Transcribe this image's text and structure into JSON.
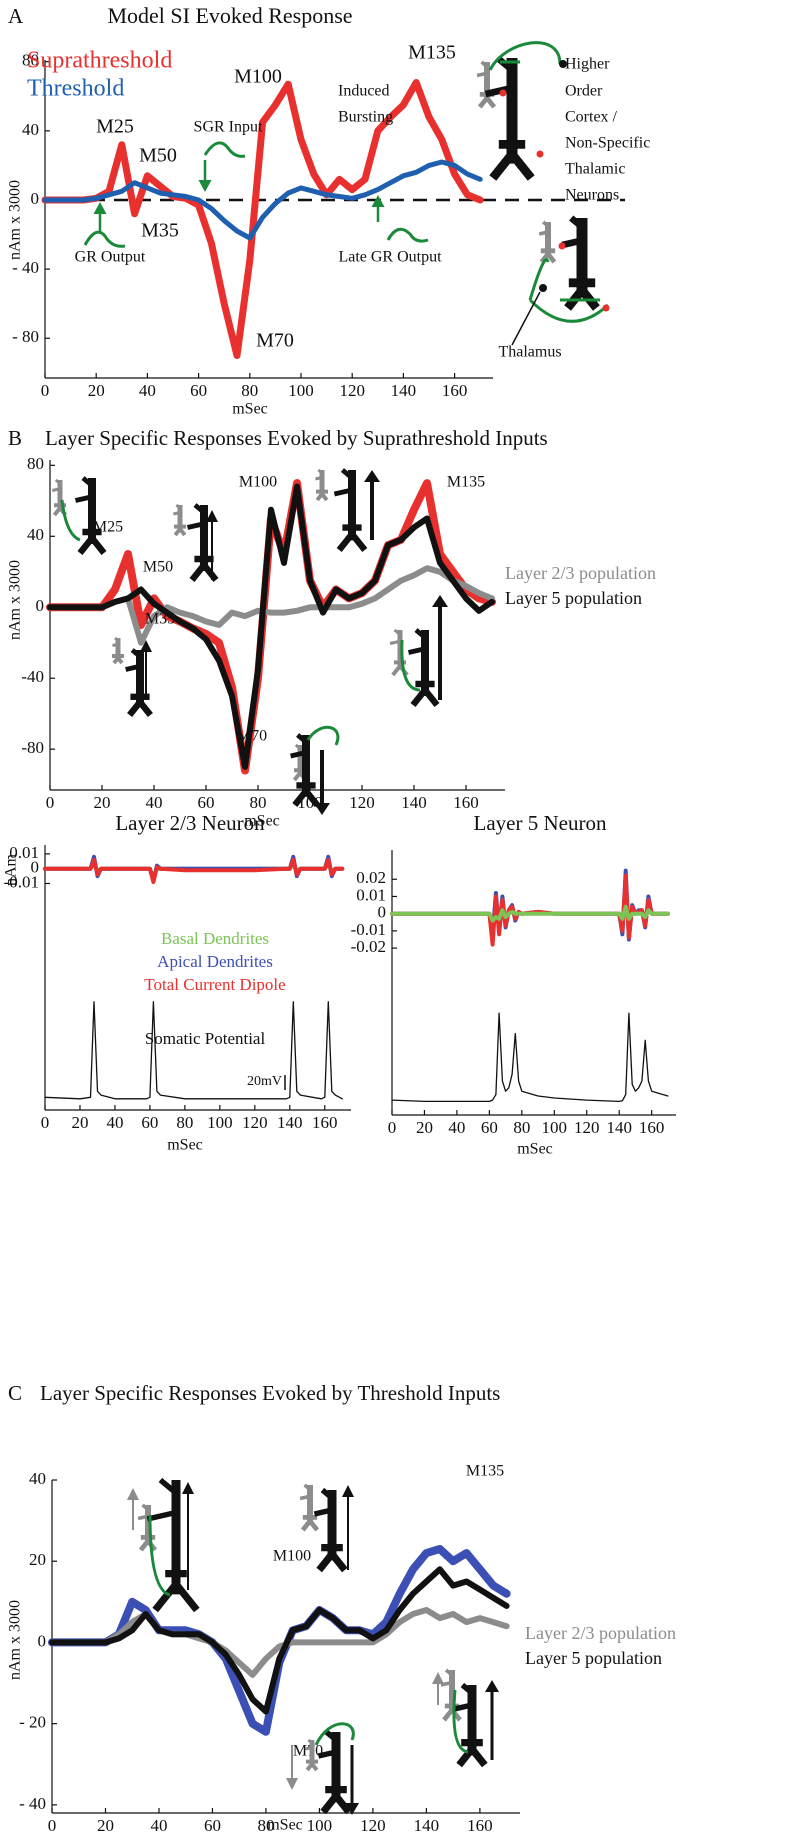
{
  "chart_data": [
    {
      "type": "line",
      "panel": "A",
      "title": "Model SI Evoked Response",
      "ylabel": "nAm x 3000",
      "xlabel": "mSec",
      "x": [
        0,
        5,
        10,
        15,
        20,
        25,
        30,
        35,
        40,
        45,
        50,
        55,
        60,
        65,
        70,
        75,
        80,
        85,
        90,
        95,
        100,
        105,
        110,
        115,
        120,
        125,
        130,
        135,
        140,
        145,
        150,
        155,
        160,
        165,
        170
      ],
      "series": [
        {
          "name": "Suprathreshold",
          "color": "#e8312f",
          "values": [
            0,
            0,
            0,
            0,
            1,
            5,
            32,
            -8,
            14,
            8,
            2,
            1,
            -3,
            -25,
            -60,
            -90,
            -35,
            45,
            55,
            67,
            35,
            15,
            3,
            12,
            6,
            12,
            40,
            48,
            55,
            68,
            48,
            35,
            15,
            3,
            0
          ]
        },
        {
          "name": "Threshold",
          "color": "#1f5fb0",
          "values": [
            0,
            0,
            0,
            0,
            1,
            3,
            5,
            10,
            7,
            4,
            3,
            2,
            0,
            -5,
            -12,
            -18,
            -22,
            -10,
            -2,
            4,
            7,
            5,
            3,
            2,
            1,
            3,
            6,
            10,
            14,
            16,
            20,
            22,
            20,
            15,
            12
          ]
        }
      ],
      "xlim": [
        0,
        175
      ],
      "ylim": [
        -103,
        81
      ],
      "xticks": [
        0,
        20,
        40,
        60,
        80,
        100,
        120,
        140,
        160
      ],
      "yticks": [
        80,
        40,
        0,
        {
          "value": -40,
          "label": "- 40"
        },
        {
          "value": -80,
          "label": "- 80"
        }
      ],
      "zero_line": true,
      "annotations": [
        "M25",
        "M50",
        "M35",
        "M70",
        "M100",
        "M135",
        "Induced",
        "Bursting",
        "SGR Input",
        "GR Output",
        "Late GR Output",
        "Higher",
        "Order",
        "Cortex /",
        "Non-Specific",
        "Thalamic",
        "Neurons",
        "Thalamus"
      ]
    },
    {
      "type": "line",
      "panel": "B",
      "title": "Layer Specific Responses Evoked by Suprathreshold Inputs",
      "ylabel": "nAm x 3000",
      "xlabel": "mSec",
      "x": [
        0,
        5,
        10,
        15,
        20,
        25,
        30,
        35,
        40,
        45,
        50,
        55,
        60,
        65,
        70,
        75,
        80,
        85,
        90,
        95,
        100,
        105,
        110,
        115,
        120,
        125,
        130,
        135,
        140,
        145,
        150,
        155,
        160,
        165,
        170
      ],
      "series": [
        {
          "color": "#e8312f",
          "values": [
            0,
            0,
            0,
            0,
            0,
            10,
            30,
            -10,
            5,
            -5,
            -8,
            -12,
            -15,
            -20,
            -45,
            -92,
            -40,
            50,
            30,
            70,
            15,
            0,
            10,
            5,
            8,
            15,
            35,
            38,
            55,
            70,
            30,
            20,
            10,
            5,
            3
          ]
        },
        {
          "name": "Layer 2/3 population",
          "color": "#8c8c8c",
          "values": [
            0,
            0,
            0,
            0,
            0,
            3,
            5,
            -20,
            -5,
            0,
            -3,
            -5,
            -8,
            -10,
            -3,
            -5,
            -2,
            -3,
            -3,
            -2,
            0,
            0,
            0,
            0,
            2,
            5,
            10,
            15,
            18,
            22,
            20,
            15,
            12,
            8,
            5
          ]
        },
        {
          "name": "Layer 5 population",
          "color": "#111111",
          "values": [
            0,
            0,
            0,
            0,
            0,
            3,
            5,
            10,
            2,
            -3,
            -8,
            -12,
            -18,
            -30,
            -50,
            -90,
            -35,
            55,
            25,
            68,
            15,
            -3,
            10,
            5,
            8,
            15,
            35,
            38,
            45,
            50,
            25,
            15,
            5,
            -2,
            3
          ]
        }
      ],
      "xlim": [
        0,
        175
      ],
      "ylim": [
        -103,
        83
      ],
      "xticks": [
        0,
        20,
        40,
        60,
        80,
        100,
        120,
        140,
        160
      ],
      "yticks": [
        80,
        40,
        0,
        -40,
        -80
      ],
      "annotations": [
        "M25",
        "M50",
        "M35",
        "M70",
        "M100",
        "M135"
      ]
    },
    {
      "type": "line",
      "title": "Layer 2/3 Neuron",
      "ylabel": "nAm",
      "xlabel": "mSec",
      "x": [
        0,
        20,
        26,
        28,
        30,
        32,
        40,
        58,
        60,
        62,
        64,
        66,
        80,
        100,
        120,
        138,
        140,
        142,
        144,
        146,
        158,
        160,
        162,
        164,
        166,
        170
      ],
      "series": [
        {
          "name": "Basal Dendrites",
          "color": "#7cc456",
          "values": [
            0,
            0,
            0,
            0.003,
            -0.002,
            0,
            0,
            0,
            0,
            -0.006,
            0,
            0,
            0,
            0,
            0,
            0,
            0,
            0.003,
            -0.002,
            0,
            0,
            0,
            0.003,
            -0.002,
            0,
            0
          ]
        },
        {
          "name": "Apical Dendrites",
          "color": "#3b4fb5",
          "values": [
            0,
            0,
            0,
            0.008,
            -0.005,
            0,
            0,
            0,
            0,
            -0.008,
            0.002,
            0,
            0,
            0,
            0,
            0,
            0,
            0.008,
            -0.005,
            0,
            0,
            0,
            0.008,
            -0.005,
            0,
            0
          ]
        },
        {
          "name": "Total Current Dipole",
          "color": "#e8312f",
          "values": [
            0,
            0,
            0,
            0.006,
            -0.004,
            0,
            0,
            0,
            0,
            -0.009,
            0.001,
            0,
            -0.001,
            -0.001,
            -0.001,
            0,
            0,
            0.006,
            -0.004,
            0,
            0,
            0,
            0.006,
            -0.004,
            0,
            0
          ]
        },
        {
          "name": "Somatic Potential",
          "color": "#111111",
          "axis": "y2",
          "values": [
            -68,
            -70,
            -68,
            60,
            -60,
            -65,
            -70,
            -70,
            -68,
            60,
            -60,
            -65,
            -70,
            -70,
            -70,
            -70,
            -68,
            60,
            -60,
            -65,
            -70,
            -68,
            60,
            -60,
            -65,
            -70
          ]
        }
      ],
      "xlim": [
        0,
        175
      ],
      "ylim": [
        -0.163,
        0.016
      ],
      "y2lim": [
        -85,
        270
      ],
      "xticks": [
        0,
        20,
        40,
        60,
        80,
        100,
        120,
        140,
        160
      ],
      "yticks": [
        0.01,
        0,
        -0.01
      ],
      "scale_bar": {
        "value": 20,
        "label": "20mV"
      }
    },
    {
      "type": "line",
      "title": "Layer 5 Neuron",
      "xlabel": "mSec",
      "x": [
        0,
        20,
        40,
        60,
        62,
        64,
        66,
        68,
        70,
        72,
        74,
        76,
        78,
        80,
        90,
        100,
        120,
        140,
        142,
        144,
        146,
        148,
        150,
        152,
        154,
        156,
        158,
        160,
        170
      ],
      "series": [
        {
          "color": "#3b4fb5",
          "values": [
            0,
            0,
            0,
            0,
            -0.012,
            0.012,
            -0.01,
            0.01,
            -0.008,
            0.002,
            0.005,
            -0.004,
            0.001,
            0,
            0.001,
            0,
            0,
            0,
            -0.012,
            0.025,
            -0.015,
            0.005,
            0,
            0.002,
            0.002,
            -0.008,
            0.01,
            0,
            0
          ]
        },
        {
          "color": "#e8312f",
          "values": [
            0,
            0,
            0,
            0,
            -0.018,
            0.01,
            -0.012,
            0.008,
            -0.007,
            0.002,
            0.004,
            -0.003,
            0.001,
            0,
            0.001,
            0,
            0,
            0,
            -0.01,
            0.022,
            -0.014,
            0.004,
            0,
            0.001,
            0.002,
            -0.007,
            0.008,
            0,
            0
          ]
        },
        {
          "color": "#7cc456",
          "values": [
            0,
            0,
            0,
            0,
            -0.004,
            -0.002,
            -0.003,
            0.002,
            -0.002,
            0,
            0.001,
            0,
            0,
            0,
            0,
            0,
            0,
            0,
            -0.003,
            0.004,
            -0.003,
            0,
            0,
            0,
            0,
            -0.002,
            0.002,
            0,
            0
          ]
        },
        {
          "color": "#111111",
          "axis": "y2",
          "values": [
            -68,
            -70,
            -70,
            -70,
            -68,
            -60,
            60,
            -40,
            -55,
            -50,
            -30,
            30,
            -40,
            -55,
            -62,
            -65,
            -68,
            -70,
            -69,
            -60,
            60,
            -45,
            -55,
            -50,
            -40,
            20,
            -40,
            -55,
            -62
          ]
        }
      ],
      "xlim": [
        0,
        175
      ],
      "ylim": [
        -0.117,
        0.037
      ],
      "y2lim": [
        -90,
        300
      ],
      "xticks": [
        0,
        20,
        40,
        60,
        80,
        100,
        120,
        140,
        160
      ],
      "yticks": [
        0.02,
        0.01,
        0,
        -0.01,
        -0.02
      ]
    },
    {
      "type": "line",
      "panel": "C",
      "title": "Layer Specific Responses Evoked by Threshold Inputs",
      "ylabel": "nAm x 3000",
      "xlabel": "mSec",
      "x": [
        0,
        5,
        10,
        15,
        20,
        25,
        30,
        35,
        40,
        45,
        50,
        55,
        60,
        65,
        70,
        75,
        80,
        85,
        90,
        95,
        100,
        105,
        110,
        115,
        120,
        125,
        130,
        135,
        140,
        145,
        150,
        155,
        160,
        165,
        170
      ],
      "series": [
        {
          "color": "#3b4fb5",
          "values": [
            0,
            0,
            0,
            0,
            0,
            2,
            10,
            8,
            3,
            3,
            3,
            2,
            0,
            -4,
            -12,
            -20,
            -22,
            -5,
            3,
            4,
            8,
            6,
            3,
            3,
            2,
            5,
            12,
            18,
            22,
            23,
            20,
            22,
            18,
            14,
            12
          ]
        },
        {
          "name": "Layer 2/3 population",
          "color": "#8c8c8c",
          "values": [
            0,
            0,
            0,
            0,
            0,
            2,
            5,
            7,
            3,
            2,
            2,
            1,
            0,
            -2,
            -5,
            -8,
            -4,
            -1,
            0,
            0,
            0,
            0,
            0,
            0,
            0,
            2,
            5,
            7,
            8,
            6,
            7,
            5,
            6,
            5,
            4
          ]
        },
        {
          "name": "Layer 5 population",
          "color": "#111111",
          "values": [
            0,
            0,
            0,
            0,
            0,
            1,
            3,
            7,
            3,
            2,
            2,
            2,
            0,
            -3,
            -8,
            -14,
            -17,
            -4,
            3,
            4,
            8,
            6,
            3,
            3,
            1,
            3,
            8,
            12,
            15,
            18,
            14,
            15,
            13,
            11,
            9
          ]
        }
      ],
      "xlim": [
        0,
        175
      ],
      "ylim": [
        -42,
        40
      ],
      "xticks": [
        0,
        20,
        40,
        60,
        80,
        100,
        120,
        140,
        160
      ],
      "yticks": [
        40,
        20,
        0,
        {
          "value": -20,
          "label": "- 20"
        },
        {
          "value": -40,
          "label": "- 40"
        }
      ],
      "annotations": [
        "M135",
        "M100",
        "M70"
      ]
    }
  ]
}
